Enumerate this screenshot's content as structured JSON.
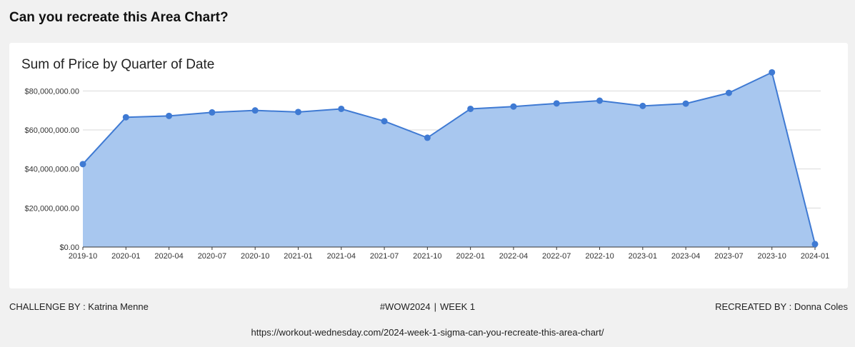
{
  "page": {
    "title": "Can you recreate this Area Chart?"
  },
  "footer": {
    "challenge_by": "CHALLENGE BY : Katrina Menne",
    "tag": "#WOW2024",
    "separator": "|",
    "week": "WEEK 1",
    "recreated_by": "RECREATED BY : Donna Coles",
    "url": "https://workout-wednesday.com/2024-week-1-sigma-can-you-recreate-this-area-chart/"
  },
  "chart_data": {
    "type": "area",
    "title": "Sum of Price by Quarter of Date",
    "xlabel": "",
    "ylabel": "",
    "ylim": [
      0,
      80000000
    ],
    "yticks": [
      0,
      20000000,
      40000000,
      60000000,
      80000000
    ],
    "ytick_labels": [
      "$0.00",
      "$20,000,000.00",
      "$40,000,000.00",
      "$60,000,000.00",
      "$80,000,000.00"
    ],
    "grid": true,
    "fill_color": "#a8c7ef",
    "line_color": "#3f7ad3",
    "categories": [
      "2019-10",
      "2020-01",
      "2020-04",
      "2020-07",
      "2020-10",
      "2021-01",
      "2021-04",
      "2021-07",
      "2021-10",
      "2022-01",
      "2022-04",
      "2022-07",
      "2022-10",
      "2023-01",
      "2023-04",
      "2023-07",
      "2023-10",
      "2024-01"
    ],
    "values": [
      42500000,
      66500000,
      67200000,
      69000000,
      70000000,
      69200000,
      70800000,
      64500000,
      56000000,
      70800000,
      72000000,
      73600000,
      75000000,
      72300000,
      73500000,
      79000000,
      89500000,
      1500000
    ]
  }
}
